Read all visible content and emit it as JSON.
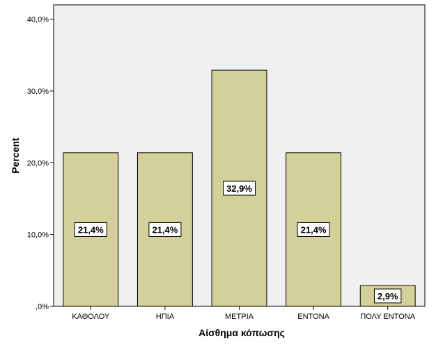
{
  "chart_data": {
    "type": "bar",
    "categories": [
      "ΚΑΘΟΛΟΥ",
      "ΗΠΙΑ",
      "ΜΕΤΡΙΑ",
      "ΕΝΤΟΝΑ",
      "ΠΟΛΥ ΕΝΤΟΝΑ"
    ],
    "values": [
      21.4,
      21.4,
      32.9,
      21.4,
      2.9
    ],
    "data_labels": [
      "21,4%",
      "21,4%",
      "32,9%",
      "21,4%",
      "2,9%"
    ],
    "title": "",
    "xlabel": "Αίσθημα κόπωσης",
    "ylabel": "Percent",
    "ylim": [
      0,
      42
    ],
    "yticks": [
      0,
      10,
      20,
      30,
      40
    ],
    "ytick_labels": [
      ",0%",
      "10,0%",
      "20,0%",
      "30,0%",
      "40,0%"
    ],
    "grid": false,
    "legend": "none",
    "colors": {
      "bar_fill": "#d4d09a",
      "bar_stroke": "#000000",
      "plot_background": "#f0f0f0",
      "page_background": "#ffffff"
    }
  }
}
